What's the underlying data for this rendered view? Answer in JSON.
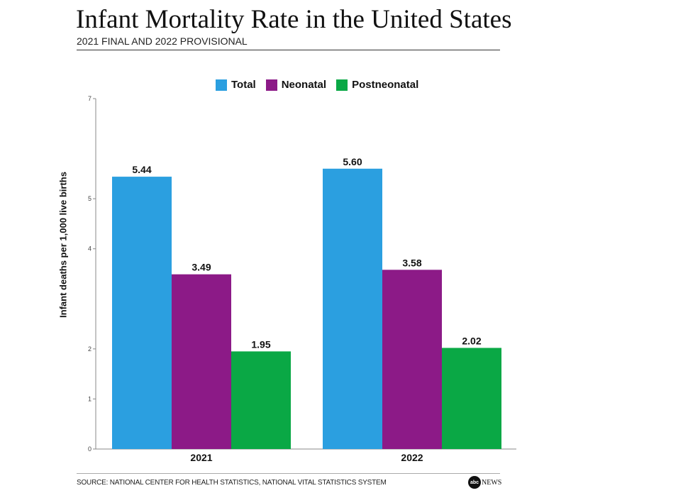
{
  "title": "Infant Mortality Rate in the United States",
  "subtitle": "2021 FINAL AND 2022 PROVISIONAL",
  "source": "SOURCE: NATIONAL CENTER FOR HEALTH STATISTICS, NATIONAL VITAL STATISTICS SYSTEM",
  "logo": {
    "mark": "abc",
    "text": "NEWS"
  },
  "colors": {
    "total": "#2b9fe0",
    "neonatal": "#8c1a87",
    "postneonatal": "#0aa845",
    "axis": "#888888"
  },
  "chart_data": {
    "type": "bar",
    "title": "Infant Mortality Rate in the United States",
    "subtitle": "2021 FINAL AND 2022 PROVISIONAL",
    "xlabel": "",
    "ylabel": "Infant deaths per 1,000 live births",
    "categories": [
      "2021",
      "2022"
    ],
    "series": [
      {
        "name": "Total",
        "color": "#2b9fe0",
        "values": [
          5.44,
          5.6
        ],
        "labels": [
          "5.44",
          "5.60"
        ]
      },
      {
        "name": "Neonatal",
        "color": "#8c1a87",
        "values": [
          3.49,
          3.58
        ],
        "labels": [
          "3.49",
          "3.58"
        ]
      },
      {
        "name": "Postneonatal",
        "color": "#0aa845",
        "values": [
          1.95,
          2.02
        ],
        "labels": [
          "1.95",
          "2.02"
        ]
      }
    ],
    "yticks": [
      "0",
      "1",
      "2",
      "4",
      "5",
      "7"
    ],
    "ylim": [
      0,
      7
    ],
    "grid": false,
    "legend_position": "top-center"
  }
}
